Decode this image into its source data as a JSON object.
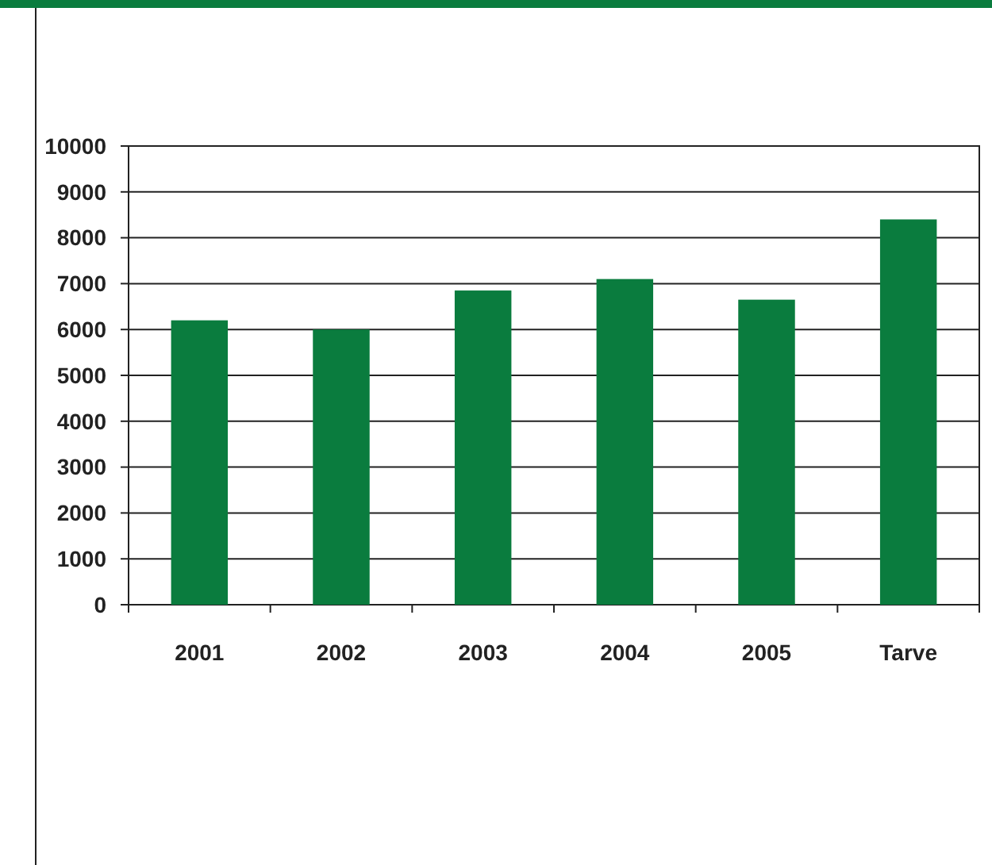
{
  "chart_data": {
    "type": "bar",
    "categories": [
      "2001",
      "2002",
      "2003",
      "2004",
      "2005",
      "Tarve"
    ],
    "values": [
      6200,
      6000,
      6850,
      7100,
      6650,
      8400
    ],
    "color": "#0a7c3e",
    "ylim": [
      0,
      10000
    ],
    "yticks": [
      0,
      1000,
      2000,
      3000,
      4000,
      5000,
      6000,
      7000,
      8000,
      9000,
      10000
    ],
    "grid": "y"
  }
}
